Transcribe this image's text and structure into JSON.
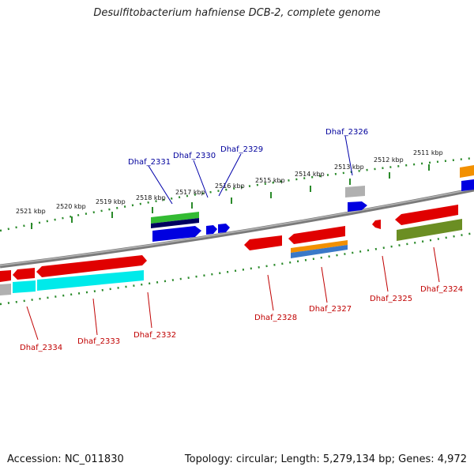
{
  "title": "Desulfitobacterium hafniense DCB-2, complete genome",
  "footer": {
    "accession": "Accession: NC_011830",
    "summary": "Topology: circular; Length: 5,279,134 bp; Genes: 4,972"
  },
  "kbp_ticks": [
    "2521 kbp",
    "2520 kbp",
    "2519 kbp",
    "2518 kbp",
    "2517 kbp",
    "2516 kbp",
    "2515 kbp",
    "2514 kbp",
    "2513 kbp",
    "2512 kbp",
    "2511 kbp"
  ],
  "top_labels": [
    "Dhaf_2331",
    "Dhaf_2330",
    "Dhaf_2329",
    "Dhaf_2326"
  ],
  "bottom_labels": [
    "Dhaf_2334",
    "Dhaf_2333",
    "Dhaf_2332",
    "Dhaf_2328",
    "Dhaf_2327",
    "Dhaf_2325",
    "Dhaf_2324"
  ],
  "colors": {
    "forward_gene": "#0000e0",
    "reverse_gene": "#e00000",
    "label_forward": "#00009c",
    "label_reverse": "#c00000",
    "backbone": "#808080",
    "tick": "#2a8a2a"
  }
}
